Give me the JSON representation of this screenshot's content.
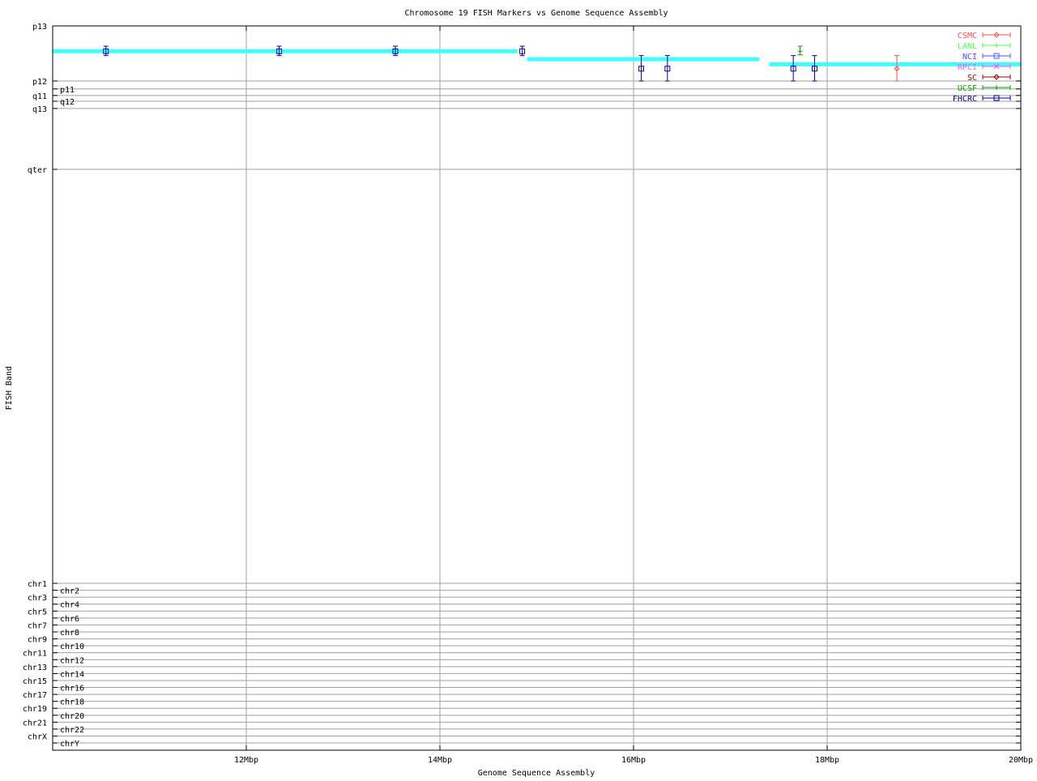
{
  "chart_data": {
    "type": "scatter",
    "title": "Chromosome 19 FISH Markers vs Genome Sequence Assembly",
    "xlabel": "Genome Sequence Assembly",
    "ylabel": "FISH Band",
    "xlim": [
      10,
      20
    ],
    "x_ticks": [
      {
        "value": 12,
        "label": "12Mbp"
      },
      {
        "value": 14,
        "label": "14Mbp"
      },
      {
        "value": 16,
        "label": "16Mbp"
      },
      {
        "value": 18,
        "label": "18Mbp"
      },
      {
        "value": 20,
        "label": "20Mbp"
      }
    ],
    "ylim": [
      0,
      100
    ],
    "y_inverted": true,
    "y_ticks": [
      {
        "value": 0,
        "label": "p13"
      },
      {
        "value": 7.6,
        "label": "p12"
      },
      {
        "value": 8.7,
        "label": "p11"
      },
      {
        "value": 9.6,
        "label": "q11"
      },
      {
        "value": 10.4,
        "label": "q12"
      },
      {
        "value": 11.4,
        "label": "q13"
      },
      {
        "value": 19.8,
        "label": "qter"
      },
      {
        "value": 76.96,
        "label": "chr1"
      },
      {
        "value": 77.92,
        "label": "chr2"
      },
      {
        "value": 78.88,
        "label": "chr3"
      },
      {
        "value": 79.83,
        "label": "chr4"
      },
      {
        "value": 80.79,
        "label": "chr5"
      },
      {
        "value": 81.75,
        "label": "chr6"
      },
      {
        "value": 82.71,
        "label": "chr7"
      },
      {
        "value": 83.67,
        "label": "chr8"
      },
      {
        "value": 84.63,
        "label": "chr9"
      },
      {
        "value": 85.58,
        "label": "chr10"
      },
      {
        "value": 86.54,
        "label": "chr11"
      },
      {
        "value": 87.5,
        "label": "chr12"
      },
      {
        "value": 88.46,
        "label": "chr13"
      },
      {
        "value": 89.42,
        "label": "chr14"
      },
      {
        "value": 90.38,
        "label": "chr15"
      },
      {
        "value": 91.33,
        "label": "chr16"
      },
      {
        "value": 92.29,
        "label": "chr17"
      },
      {
        "value": 93.25,
        "label": "chr18"
      },
      {
        "value": 94.21,
        "label": "chr19"
      },
      {
        "value": 95.17,
        "label": "chr20"
      },
      {
        "value": 96.13,
        "label": "chr21"
      },
      {
        "value": 97.08,
        "label": "chr22"
      },
      {
        "value": 98.04,
        "label": "chrX"
      },
      {
        "value": 99.0,
        "label": "chrY"
      }
    ],
    "grid": true,
    "legend_position": "top-right",
    "assembly_segments": {
      "color": "#40ffff",
      "segments": [
        {
          "x0": 10.0,
          "x1": 14.8,
          "y": 3.5
        },
        {
          "x0": 14.9,
          "x1": 17.3,
          "y": 4.6
        },
        {
          "x0": 17.4,
          "x1": 20.0,
          "y": 5.3
        }
      ]
    },
    "series": [
      {
        "name": "CSMC",
        "color": "#ff5050",
        "marker": "diamond",
        "points": [
          {
            "x": 18.72,
            "y": 5.9,
            "ylow": 4.1,
            "yhigh": 7.6
          }
        ]
      },
      {
        "name": "LANL",
        "color": "#50ff50",
        "marker": "plus",
        "points": []
      },
      {
        "name": "NCI",
        "color": "#5050ff",
        "marker": "square",
        "points": []
      },
      {
        "name": "RPCI",
        "color": "#ff50ff",
        "marker": "cross",
        "points": []
      },
      {
        "name": "SC",
        "color": "#a00000",
        "marker": "diamond",
        "points": []
      },
      {
        "name": "UCSF",
        "color": "#00a000",
        "marker": "plus",
        "points": [
          {
            "x": 17.72,
            "y": 3.5,
            "ylow": 2.8,
            "yhigh": 4.0
          }
        ]
      },
      {
        "name": "FHCRC",
        "color": "#0000a0",
        "marker": "square",
        "points": [
          {
            "x": 10.55,
            "y": 3.5,
            "ylow": 2.8,
            "yhigh": 4.1
          },
          {
            "x": 12.34,
            "y": 3.5,
            "ylow": 2.8,
            "yhigh": 4.1
          },
          {
            "x": 13.54,
            "y": 3.5,
            "ylow": 2.8,
            "yhigh": 4.1
          },
          {
            "x": 14.85,
            "y": 3.5,
            "ylow": 2.8,
            "yhigh": 4.1
          },
          {
            "x": 16.08,
            "y": 5.9,
            "ylow": 4.1,
            "yhigh": 7.6
          },
          {
            "x": 16.35,
            "y": 5.9,
            "ylow": 4.1,
            "yhigh": 7.6
          },
          {
            "x": 17.65,
            "y": 5.9,
            "ylow": 4.1,
            "yhigh": 7.6
          },
          {
            "x": 17.87,
            "y": 5.9,
            "ylow": 4.1,
            "yhigh": 7.6
          }
        ]
      }
    ]
  }
}
